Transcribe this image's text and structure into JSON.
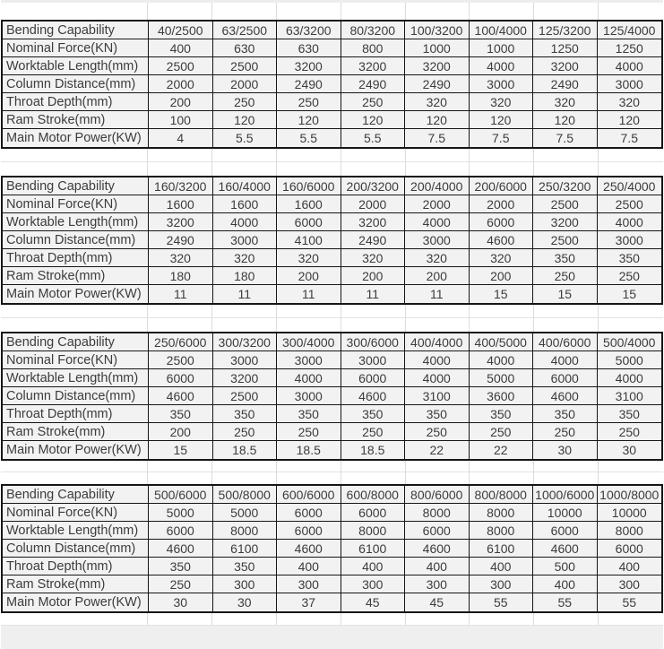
{
  "styles": {
    "cell_background": "#f2f2f2",
    "table_border": "#161616",
    "text_color": "#3c3c3c",
    "gridline_color": "#dcdcdc",
    "page_background": "#ffffff"
  },
  "tables": [
    {
      "header_label": "Bending Capability",
      "models": [
        "40/2500",
        "63/2500",
        "63/3200",
        "80/3200",
        "100/3200",
        "100/4000",
        "125/3200",
        "125/4000"
      ],
      "rows": [
        {
          "label": "Nominal Force(KN)",
          "values": [
            "400",
            "630",
            "630",
            "800",
            "1000",
            "1000",
            "1250",
            "1250"
          ]
        },
        {
          "label": "Worktable Length(mm)",
          "values": [
            "2500",
            "2500",
            "3200",
            "3200",
            "3200",
            "4000",
            "3200",
            "4000"
          ]
        },
        {
          "label": "Column Distance(mm)",
          "values": [
            "2000",
            "2000",
            "2490",
            "2490",
            "2490",
            "3000",
            "2490",
            "3000"
          ]
        },
        {
          "label": "Throat Depth(mm)",
          "values": [
            "200",
            "250",
            "250",
            "250",
            "320",
            "320",
            "320",
            "320"
          ]
        },
        {
          "label": "Ram Stroke(mm)",
          "values": [
            "100",
            "120",
            "120",
            "120",
            "120",
            "120",
            "120",
            "120"
          ]
        },
        {
          "label": "Main Motor Power(KW)",
          "values": [
            "4",
            "5.5",
            "5.5",
            "5.5",
            "7.5",
            "7.5",
            "7.5",
            "7.5"
          ]
        }
      ]
    },
    {
      "header_label": "Bending Capability",
      "models": [
        "160/3200",
        "160/4000",
        "160/6000",
        "200/3200",
        "200/4000",
        "200/6000",
        "250/3200",
        "250/4000"
      ],
      "rows": [
        {
          "label": "Nominal Force(KN)",
          "values": [
            "1600",
            "1600",
            "1600",
            "2000",
            "2000",
            "2000",
            "2500",
            "2500"
          ]
        },
        {
          "label": "Worktable Length(mm)",
          "values": [
            "3200",
            "4000",
            "6000",
            "3200",
            "4000",
            "6000",
            "3200",
            "4000"
          ]
        },
        {
          "label": "Column Distance(mm)",
          "values": [
            "2490",
            "3000",
            "4100",
            "2490",
            "3000",
            "4600",
            "2500",
            "3000"
          ]
        },
        {
          "label": "Throat Depth(mm)",
          "values": [
            "320",
            "320",
            "320",
            "320",
            "320",
            "320",
            "350",
            "350"
          ]
        },
        {
          "label": "Ram Stroke(mm)",
          "values": [
            "180",
            "180",
            "200",
            "200",
            "200",
            "200",
            "250",
            "250"
          ]
        },
        {
          "label": "Main Motor Power(KW)",
          "values": [
            "11",
            "11",
            "11",
            "11",
            "11",
            "15",
            "15",
            "15"
          ]
        }
      ]
    },
    {
      "header_label": "Bending Capability",
      "models": [
        "250/6000",
        "300/3200",
        "300/4000",
        "300/6000",
        "400/4000",
        "400/5000",
        "400/6000",
        "500/4000"
      ],
      "rows": [
        {
          "label": "Nominal Force(KN)",
          "values": [
            "2500",
            "3000",
            "3000",
            "3000",
            "4000",
            "4000",
            "4000",
            "5000"
          ]
        },
        {
          "label": "Worktable Length(mm)",
          "values": [
            "6000",
            "3200",
            "4000",
            "6000",
            "4000",
            "5000",
            "6000",
            "4000"
          ]
        },
        {
          "label": "Column Distance(mm)",
          "values": [
            "4600",
            "2500",
            "3000",
            "4600",
            "3100",
            "3600",
            "4600",
            "3100"
          ]
        },
        {
          "label": "Throat Depth(mm)",
          "values": [
            "350",
            "350",
            "350",
            "350",
            "350",
            "350",
            "350",
            "350"
          ]
        },
        {
          "label": "Ram Stroke(mm)",
          "values": [
            "200",
            "250",
            "250",
            "250",
            "250",
            "250",
            "250",
            "250"
          ]
        },
        {
          "label": "Main Motor Power(KW)",
          "values": [
            "15",
            "18.5",
            "18.5",
            "18.5",
            "22",
            "22",
            "30",
            "30"
          ]
        }
      ]
    },
    {
      "header_label": "Bending Capability",
      "models": [
        "500/6000",
        "500/8000",
        "600/6000",
        "600/8000",
        "800/6000",
        "800/8000",
        "1000/6000",
        "1000/8000"
      ],
      "rows": [
        {
          "label": "Nominal Force(KN)",
          "values": [
            "5000",
            "5000",
            "6000",
            "6000",
            "8000",
            "8000",
            "10000",
            "10000"
          ]
        },
        {
          "label": "Worktable Length(mm)",
          "values": [
            "6000",
            "8000",
            "6000",
            "8000",
            "6000",
            "8000",
            "6000",
            "8000"
          ]
        },
        {
          "label": "Column Distance(mm)",
          "values": [
            "4600",
            "6100",
            "4600",
            "6100",
            "4600",
            "6100",
            "4600",
            "6000"
          ]
        },
        {
          "label": "Throat Depth(mm)",
          "values": [
            "350",
            "350",
            "400",
            "400",
            "400",
            "400",
            "500",
            "400"
          ]
        },
        {
          "label": "Ram Stroke(mm)",
          "values": [
            "250",
            "300",
            "300",
            "300",
            "300",
            "300",
            "400",
            "300"
          ]
        },
        {
          "label": "Main Motor Power(KW)",
          "values": [
            "30",
            "30",
            "37",
            "45",
            "45",
            "55",
            "55",
            "55"
          ]
        }
      ]
    }
  ]
}
